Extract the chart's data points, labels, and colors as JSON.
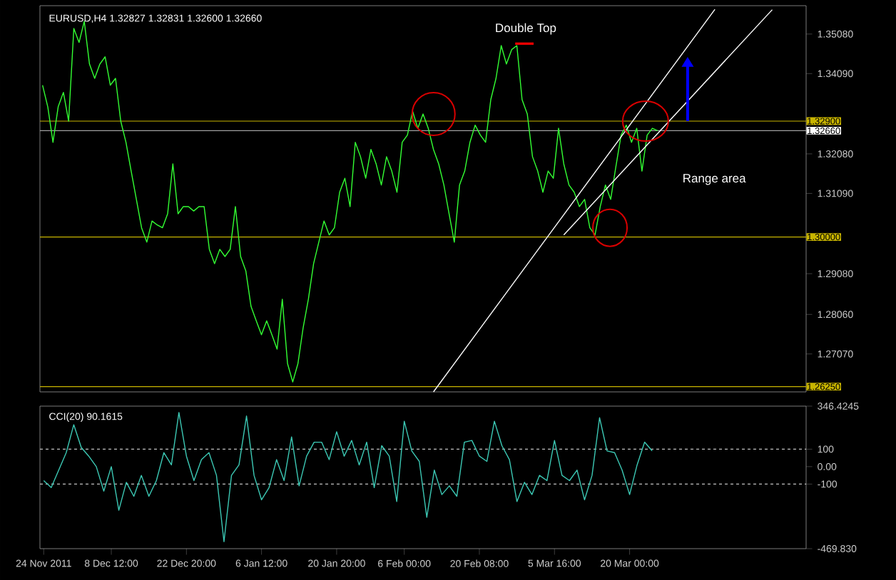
{
  "chart_data": [
    {
      "type": "line",
      "title": "EURUSD,H4 1.32827 1.32831 1.32600 1.32660",
      "categories": [
        null,
        null,
        null,
        null,
        null,
        null,
        null,
        null,
        null,
        null,
        null,
        null,
        null,
        null,
        null,
        null,
        null,
        null,
        null,
        null,
        null,
        null,
        null,
        null,
        null,
        null,
        null,
        null,
        null,
        null,
        null,
        null,
        null,
        null,
        null,
        null,
        null,
        null,
        null,
        null,
        null,
        null,
        null,
        null,
        null,
        null,
        null,
        null,
        null,
        null,
        null,
        null,
        null,
        null,
        null,
        null,
        null,
        null,
        null,
        null,
        null,
        null,
        null,
        null,
        null,
        null,
        null,
        null,
        null,
        null,
        null,
        null,
        null,
        null,
        null,
        null,
        null,
        null,
        null,
        null,
        null,
        null,
        null,
        null,
        null,
        null,
        null,
        null,
        null,
        null,
        null,
        null,
        null,
        null,
        null,
        null,
        null,
        null,
        null,
        null,
        null,
        null,
        null,
        null,
        null,
        null,
        null,
        null,
        null,
        null,
        null,
        null,
        null,
        null,
        null,
        null,
        null,
        null,
        null,
        null,
        null,
        null,
        null,
        null,
        null,
        null,
        null,
        null,
        null,
        null,
        null,
        null,
        null,
        null,
        null,
        null,
        null,
        null,
        null,
        null,
        null,
        null,
        null,
        null,
        null,
        null,
        null
      ],
      "series": [
        {
          "color": "#33ff33",
          "values": [
            1.338,
            1.3326,
            1.3237,
            1.3326,
            1.3362,
            1.329,
            1.3522,
            1.3487,
            1.354,
            1.3433,
            1.3397,
            1.3433,
            1.3451,
            1.338,
            1.3397,
            1.329,
            1.3237,
            1.3165,
            1.3094,
            1.3023,
            1.2987,
            1.304,
            1.303,
            1.3023,
            1.3058,
            1.3183,
            1.3058,
            1.3076,
            1.3076,
            1.3065,
            1.3076,
            1.3076,
            1.2969,
            1.2933,
            1.2969,
            1.2951,
            1.2969,
            1.3076,
            1.2951,
            1.2915,
            1.2826,
            1.279,
            1.2755,
            1.279,
            1.2755,
            1.2719,
            1.2844,
            1.2683,
            1.2637,
            1.2683,
            1.2773,
            1.2844,
            1.2933,
            1.2987,
            1.304,
            1.3005,
            1.3023,
            1.3112,
            1.3147,
            1.3076,
            1.3237,
            1.3201,
            1.3147,
            1.3219,
            1.3183,
            1.313,
            1.3201,
            1.3165,
            1.3112,
            1.3237,
            1.3255,
            1.3315,
            1.3272,
            1.3308,
            1.3272,
            1.3219,
            1.3183,
            1.313,
            1.3058,
            1.2987,
            1.313,
            1.3165,
            1.3237,
            1.328,
            1.3255,
            1.3237,
            1.3344,
            1.3397,
            1.3479,
            1.3433,
            1.3469,
            1.3479,
            1.3344,
            1.3308,
            1.3201,
            1.3165,
            1.3112,
            1.3165,
            1.3147,
            1.3272,
            1.3183,
            1.313,
            1.3112,
            1.3076,
            1.3094,
            1.3023,
            1.3005,
            1.3076,
            1.313,
            1.3094,
            1.3176,
            1.3255,
            1.328,
            1.3237,
            1.3272,
            1.3165,
            1.3255,
            1.3272,
            1.3266,
            null,
            null,
            null,
            null,
            null,
            null,
            null,
            null,
            null,
            null,
            null,
            null,
            null,
            null,
            null,
            null,
            null,
            null,
            null,
            null,
            null,
            null,
            null,
            null,
            null,
            null,
            null,
            null
          ]
        },
        {
          "type": "line",
          "color": "#ffffff",
          "values": [
            null,
            null,
            null,
            null,
            null,
            null,
            null,
            null,
            null,
            null,
            null,
            null,
            null,
            null,
            null,
            null,
            null,
            null,
            null,
            null,
            null,
            null,
            null,
            null,
            null,
            null,
            null,
            null,
            null,
            null,
            null,
            null,
            null,
            null,
            null,
            null,
            null,
            null,
            null,
            null,
            null,
            null,
            null,
            null,
            null,
            null,
            null,
            null,
            null,
            null,
            null,
            null,
            null,
            null,
            null,
            null,
            null,
            null,
            null,
            null,
            null,
            null,
            null,
            null,
            null,
            null,
            null,
            null,
            null,
            null,
            null,
            null,
            null,
            null,
            null,
            1.2612,
            null,
            null,
            null,
            null,
            null,
            null,
            null,
            null,
            null,
            null,
            null,
            null,
            null,
            null,
            null,
            null,
            null,
            null,
            null,
            null,
            null,
            null,
            null,
            null,
            null,
            null,
            null,
            null,
            null,
            null,
            null,
            null,
            null,
            null,
            null,
            null,
            null,
            null,
            null,
            null,
            null,
            null,
            null,
            null,
            null,
            null,
            null,
            null,
            null,
            null,
            null,
            null,
            null,
            1.357,
            null,
            null,
            null,
            null,
            null,
            null,
            null,
            null,
            null,
            null,
            null,
            null,
            null,
            null,
            null,
            null,
            null
          ]
        },
        {
          "type": "line",
          "color": "#ffffff",
          "values": [
            null,
            null,
            null,
            null,
            null,
            null,
            null,
            null,
            null,
            null,
            null,
            null,
            null,
            null,
            null,
            null,
            null,
            null,
            null,
            null,
            null,
            null,
            null,
            null,
            null,
            null,
            null,
            null,
            null,
            null,
            null,
            null,
            null,
            null,
            null,
            null,
            null,
            null,
            null,
            null,
            null,
            null,
            null,
            null,
            null,
            null,
            null,
            null,
            null,
            null,
            null,
            null,
            null,
            null,
            null,
            null,
            null,
            null,
            null,
            null,
            null,
            null,
            null,
            null,
            null,
            null,
            null,
            null,
            null,
            null,
            null,
            null,
            null,
            null,
            null,
            null,
            null,
            null,
            null,
            null,
            null,
            null,
            null,
            null,
            null,
            null,
            null,
            null,
            null,
            null,
            null,
            null,
            null,
            null,
            null,
            null,
            null,
            null,
            null,
            null,
            1.3005,
            null,
            null,
            null,
            null,
            null,
            null,
            null,
            null,
            null,
            null,
            null,
            null,
            null,
            null,
            null,
            null,
            null,
            null,
            null,
            null,
            null,
            null,
            null,
            null,
            null,
            null,
            null,
            null,
            null,
            null,
            null,
            null,
            null,
            null,
            null,
            null,
            null,
            null,
            null,
            1.3569,
            null,
            null,
            null,
            null,
            null,
            null
          ]
        }
      ],
      "ylim": [
        1.2612,
        1.3579
      ],
      "yticks": [
        {
          "value": 1.3508,
          "label": "1.35080"
        },
        {
          "value": 1.3409,
          "label": "1.34090"
        },
        {
          "value": 1.3208,
          "label": "1.32080"
        },
        {
          "value": 1.3109,
          "label": "1.31090"
        },
        {
          "value": 1.2908,
          "label": "1.29080"
        },
        {
          "value": 1.2806,
          "label": "1.28060"
        },
        {
          "value": 1.2707,
          "label": "1.27070"
        }
      ],
      "ref_lines": [
        {
          "axis": "y",
          "value": 1.329,
          "label": "1.32900",
          "color": "#c8b400"
        },
        {
          "axis": "y",
          "value": 1.3266,
          "label": "1.32660",
          "color": "#a0a0a0"
        },
        {
          "axis": "y",
          "value": 1.3,
          "label": "1.30000",
          "color": "#c8b400"
        },
        {
          "axis": "y",
          "value": 1.2625,
          "label": "1.26250",
          "color": "#c8b400"
        }
      ],
      "annotations": [
        "Double Top",
        "Range area"
      ],
      "tick_labels": "y"
    },
    {
      "type": "line",
      "title": "CCI(20) 90.1615",
      "categories": [
        "24 Nov 2011",
        null,
        null,
        null,
        null,
        null,
        null,
        null,
        null,
        "8 Dec 12:00",
        null,
        null,
        null,
        null,
        null,
        null,
        null,
        null,
        null,
        "22 Dec 20:00",
        null,
        null,
        null,
        null,
        null,
        null,
        null,
        null,
        null,
        "6 Jan 12:00",
        null,
        null,
        null,
        null,
        null,
        null,
        null,
        null,
        null,
        "20 Jan 20:00",
        null,
        null,
        null,
        null,
        null,
        null,
        null,
        null,
        "6 Feb 00:00",
        null,
        null,
        null,
        null,
        null,
        null,
        null,
        null,
        null,
        "20 Feb 08:00",
        null,
        null,
        null,
        null,
        null,
        null,
        null,
        null,
        null,
        "5 Mar 16:00",
        null,
        null,
        null,
        null,
        null,
        null,
        null,
        null,
        null,
        "20 Mar 00:00",
        null,
        null,
        null,
        null,
        null,
        null,
        null,
        null,
        null,
        null,
        null,
        null,
        null,
        null,
        null,
        null,
        null,
        null,
        null,
        null,
        null,
        null,
        null
      ],
      "series": [
        {
          "color": "#3cc8b4",
          "values": [
            -80,
            -120,
            -20,
            80,
            240,
            110,
            60,
            0,
            -140,
            0,
            -250,
            -90,
            -170,
            -50,
            -170,
            -80,
            80,
            10,
            310,
            60,
            -80,
            40,
            80,
            -50,
            -430,
            -50,
            10,
            290,
            -50,
            -190,
            -120,
            40,
            -80,
            170,
            -110,
            60,
            140,
            140,
            40,
            200,
            60,
            150,
            10,
            140,
            -120,
            120,
            60,
            -200,
            260,
            90,
            30,
            -290,
            -20,
            -160,
            -110,
            -170,
            140,
            150,
            60,
            30,
            260,
            120,
            40,
            -200,
            -90,
            -160,
            -50,
            -80,
            150,
            -50,
            -80,
            -20,
            -190,
            -50,
            280,
            90,
            80,
            -20,
            -160,
            10,
            140,
            90,
            null,
            null,
            null,
            null,
            null,
            null,
            null,
            null,
            null,
            null,
            null,
            null,
            null,
            null,
            null,
            null,
            null,
            null,
            null,
            null
          ]
        }
      ],
      "ylim": [
        -469.83,
        346.4245
      ],
      "yticks": [
        346.4245,
        100,
        {
          "value": 0,
          "label": "0.00"
        },
        -100,
        {
          "value": -469.83,
          "label": "-469.830"
        }
      ],
      "ref_lines": [
        {
          "axis": "y",
          "value": 100,
          "color": "#c0c0c0",
          "line_style": "dashed"
        },
        {
          "axis": "y",
          "value": -100,
          "color": "#c0c0c0",
          "line_style": "dashed"
        }
      ]
    }
  ]
}
